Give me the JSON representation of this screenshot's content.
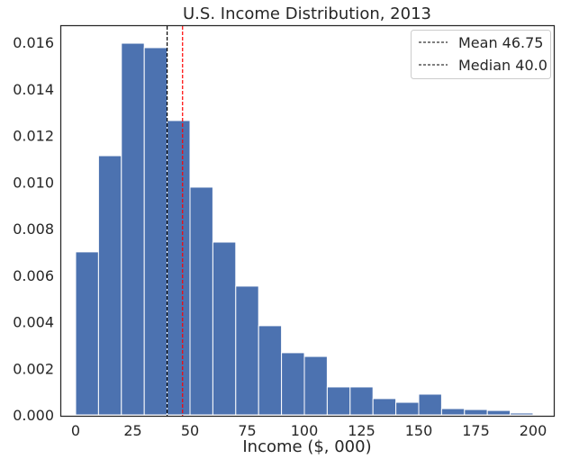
{
  "chart_data": {
    "type": "bar",
    "title": "U.S. Income Distribution, 2013",
    "xlabel": "Income ($, 000)",
    "ylabel": "",
    "xlim": [
      -7,
      209
    ],
    "ylim": [
      0,
      0.0168
    ],
    "xticks": [
      0,
      25,
      50,
      75,
      100,
      125,
      150,
      175,
      200
    ],
    "xtick_labels": [
      "0",
      "25",
      "50",
      "75",
      "100",
      "125",
      "150",
      "175",
      "200"
    ],
    "yticks": [
      0,
      0.002,
      0.004,
      0.006,
      0.008,
      0.01,
      0.012,
      0.014,
      0.016
    ],
    "ytick_labels": [
      "0.000",
      "0.002",
      "0.004",
      "0.006",
      "0.008",
      "0.010",
      "0.012",
      "0.014",
      "0.016"
    ],
    "bin_edges": [
      0,
      10,
      20,
      30,
      40,
      50,
      60,
      70,
      80,
      90,
      100,
      110,
      120,
      130,
      140,
      150,
      160,
      170,
      180,
      190,
      200
    ],
    "values": [
      0.007,
      0.01113,
      0.01596,
      0.01577,
      0.01264,
      0.00978,
      0.00742,
      0.00553,
      0.00383,
      0.00267,
      0.00251,
      0.0012,
      0.0012,
      0.0007,
      0.00054,
      0.00089,
      0.00027,
      0.00023,
      0.00019,
      8e-05
    ],
    "bar_color": "#4c72b0",
    "vlines": [
      {
        "label": "Mean 46.75",
        "x": 46.75,
        "color": "#ff0000",
        "legend_color": "#000000"
      },
      {
        "label": "Median 40.0",
        "x": 40.0,
        "color": "#000000",
        "legend_color": "#000000"
      }
    ],
    "legend_placement": "top-right",
    "grid": false
  }
}
